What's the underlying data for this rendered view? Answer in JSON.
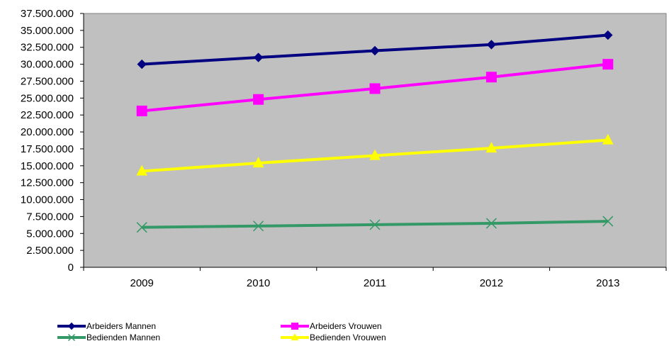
{
  "chart_data": {
    "type": "line",
    "title": "",
    "xlabel": "",
    "ylabel": "",
    "categories": [
      "2009",
      "2010",
      "2011",
      "2012",
      "2013"
    ],
    "ylim": [
      0,
      37500000
    ],
    "yticks": [
      "0",
      "2.500.000",
      "5.000.000",
      "7.500.000",
      "10.000.000",
      "12.500.000",
      "15.000.000",
      "17.500.000",
      "20.000.000",
      "22.500.000",
      "25.000.000",
      "27.500.000",
      "30.000.000",
      "32.500.000",
      "35.000.000",
      "37.500.000"
    ],
    "plot_background": "#c0c0c0",
    "grid": false,
    "legend_position": "bottom",
    "series": [
      {
        "name": "Arbeiders Mannen",
        "color": "#000080",
        "marker": "diamond",
        "values": [
          30000000,
          31000000,
          32000000,
          32900000,
          34300000
        ]
      },
      {
        "name": "Arbeiders Vrouwen",
        "color": "#ff00ff",
        "marker": "square",
        "values": [
          23100000,
          24800000,
          26400000,
          28100000,
          30000000
        ]
      },
      {
        "name": "Bedienden Mannen",
        "color": "#339966",
        "marker": "x",
        "values": [
          5900000,
          6100000,
          6300000,
          6500000,
          6800000
        ]
      },
      {
        "name": "Bedienden Vrouwen",
        "color": "#ffff00",
        "marker": "triangle",
        "values": [
          14200000,
          15400000,
          16500000,
          17600000,
          18800000
        ]
      }
    ]
  },
  "legend": {
    "items": [
      {
        "label": "Arbeiders Mannen"
      },
      {
        "label": "Arbeiders Vrouwen"
      },
      {
        "label": "Bedienden Mannen"
      },
      {
        "label": "Bedienden Vrouwen"
      }
    ]
  }
}
